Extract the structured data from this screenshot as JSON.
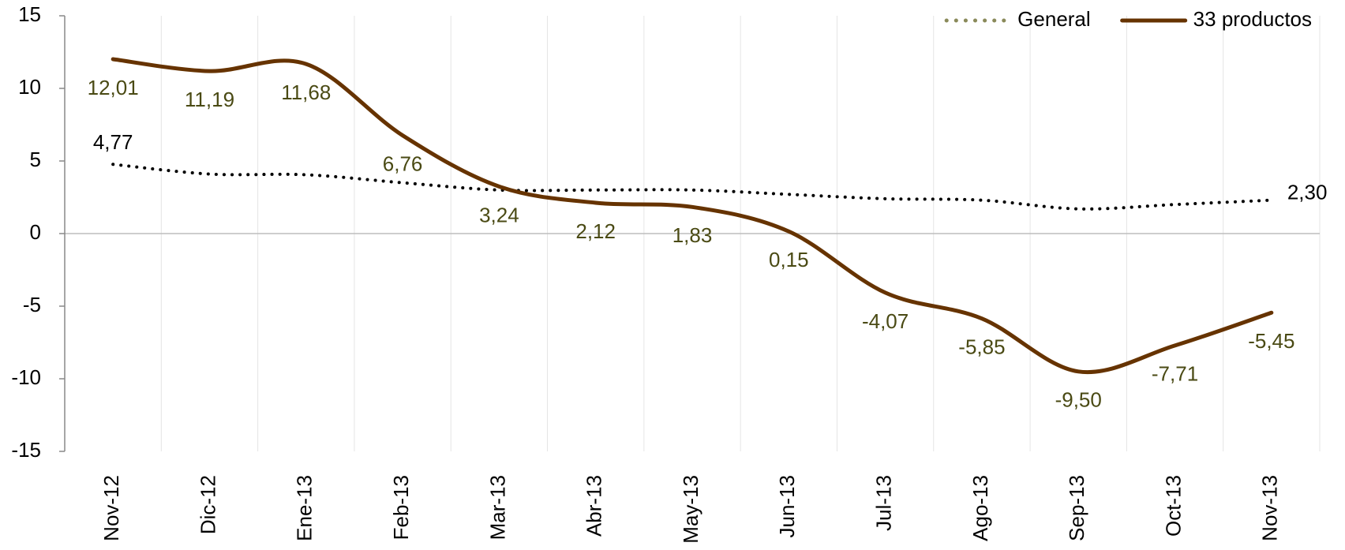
{
  "chart_data": {
    "type": "line",
    "categories": [
      "Nov-12",
      "Dic-12",
      "Ene-13",
      "Feb-13",
      "Mar-13",
      "Abr-13",
      "May-13",
      "Jun-13",
      "Jul-13",
      "Ago-13",
      "Sep-13",
      "Oct-13",
      "Nov-13"
    ],
    "series": [
      {
        "name": "General",
        "color": "#000000",
        "style": "dotted",
        "values": [
          4.77,
          4.1,
          4.05,
          3.5,
          3.0,
          3.0,
          3.0,
          2.7,
          2.4,
          2.3,
          1.7,
          2.0,
          2.3
        ],
        "value_labels": [
          "4,77",
          null,
          null,
          null,
          null,
          null,
          null,
          null,
          null,
          null,
          null,
          null,
          "2,30"
        ]
      },
      {
        "name": "33 productos",
        "color": "#663300",
        "style": "solid",
        "values": [
          12.01,
          11.19,
          11.68,
          6.76,
          3.24,
          2.12,
          1.83,
          0.15,
          -4.07,
          -5.85,
          -9.5,
          -7.71,
          -5.45
        ],
        "value_labels": [
          "12,01",
          "11,19",
          "11,68",
          "6,76",
          "3,24",
          "2,12",
          "1,83",
          "0,15",
          "-4,07",
          "-5,85",
          "-9,50",
          "-7,71",
          "-5,45"
        ]
      }
    ],
    "ylim": [
      -15,
      15
    ],
    "yticks": [
      -15,
      -10,
      -5,
      0,
      5,
      10,
      15
    ],
    "legend": "top-right"
  }
}
